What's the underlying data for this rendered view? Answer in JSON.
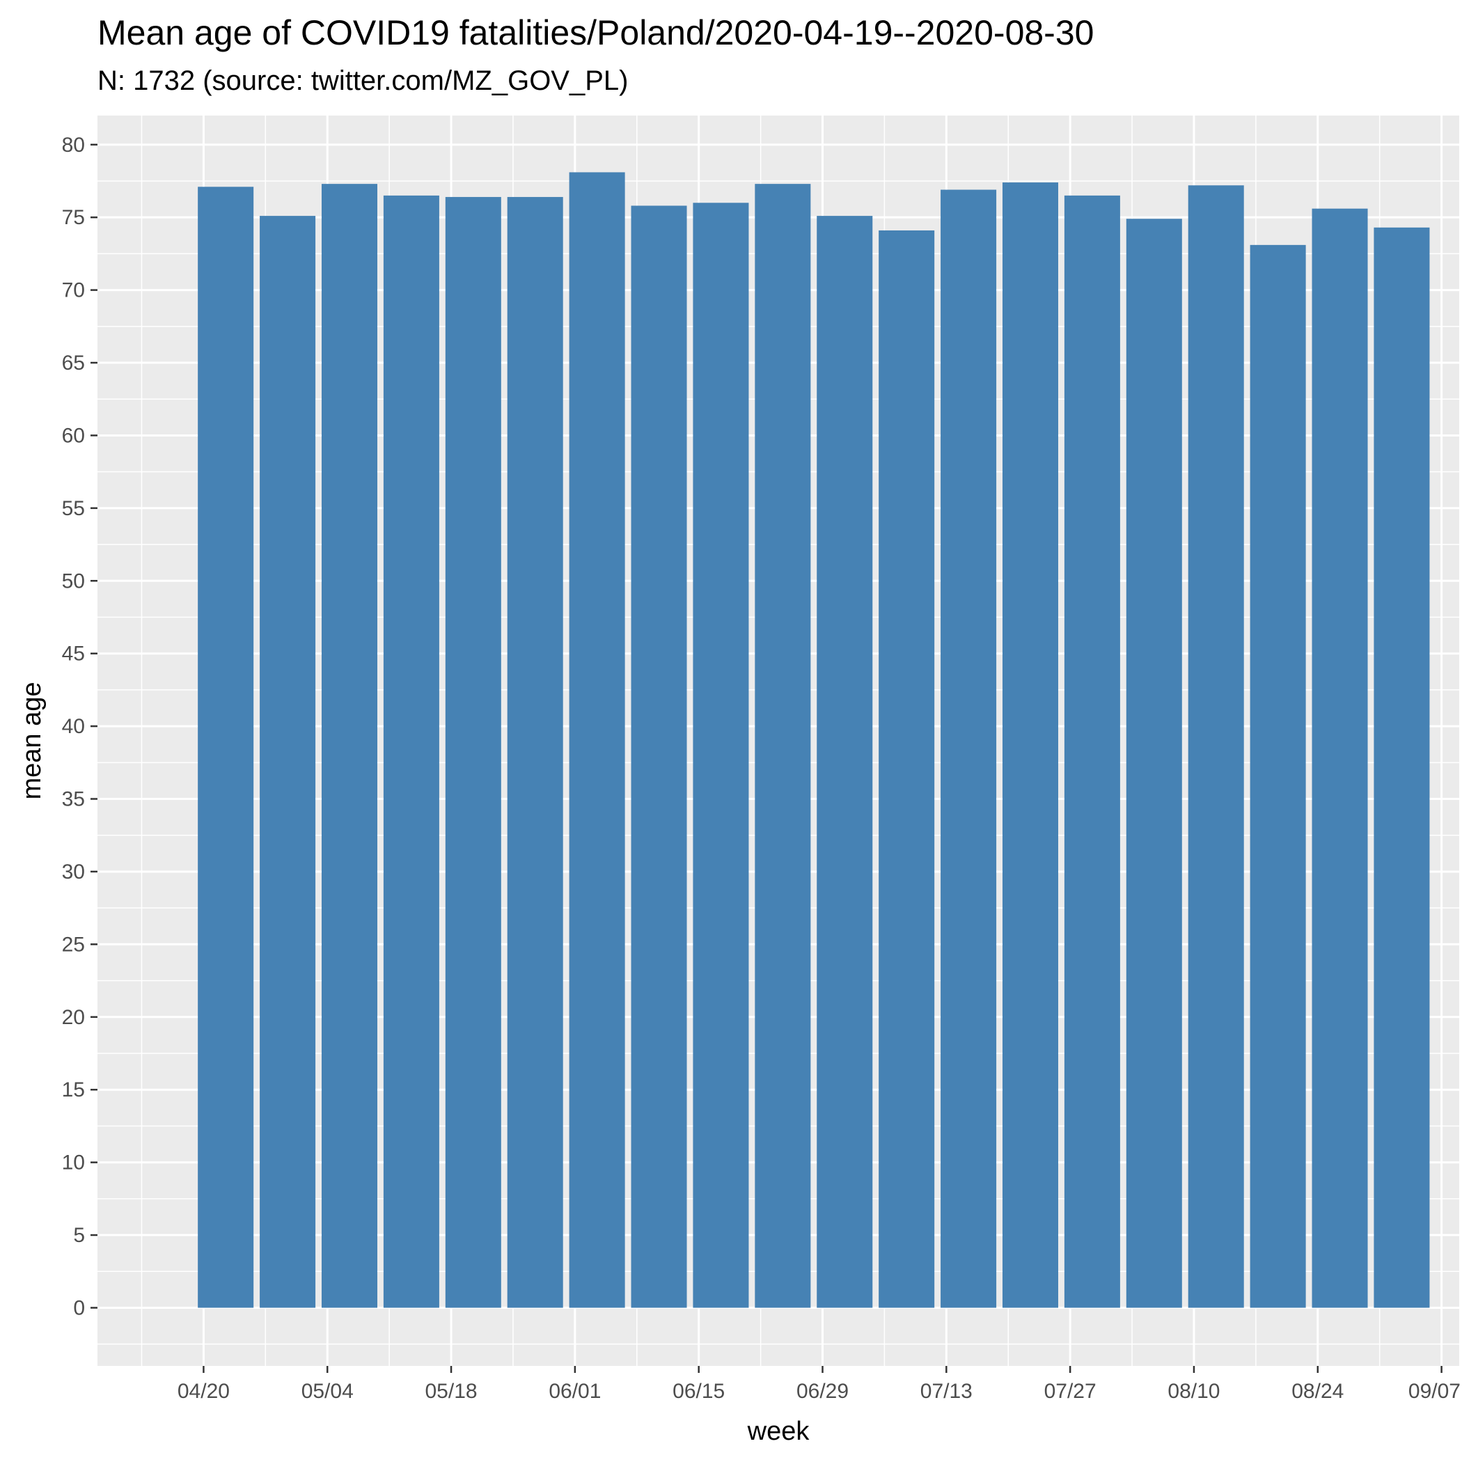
{
  "colors": {
    "panel_background": "#ebebeb",
    "gridline": "#ffffff",
    "bar_fill": "#4682b4"
  },
  "chart_data": {
    "type": "bar",
    "title": "Mean age of COVID19 fatalities/Poland/2020-04-19--2020-08-30",
    "subtitle": "N: 1732 (source: twitter.com/MZ_GOV_PL)",
    "xlabel": "week",
    "ylabel": "mean age",
    "x_axis_type": "date",
    "x_tick_labels": [
      "04/20",
      "05/04",
      "05/18",
      "06/01",
      "06/15",
      "06/29",
      "07/13",
      "07/27",
      "08/10",
      "08/24",
      "09/07"
    ],
    "x_tick_dates": [
      "2020-04-20",
      "2020-05-04",
      "2020-05-18",
      "2020-06-01",
      "2020-06-15",
      "2020-06-29",
      "2020-07-13",
      "2020-07-27",
      "2020-08-10",
      "2020-08-24",
      "2020-09-07"
    ],
    "xlim": [
      "2020-04-08",
      "2020-09-09"
    ],
    "ylim": [
      -4,
      82
    ],
    "y_ticks": [
      0,
      5,
      10,
      15,
      20,
      25,
      30,
      35,
      40,
      45,
      50,
      55,
      60,
      65,
      70,
      75,
      80
    ],
    "grid": true,
    "bar_color": "#4682b4",
    "categories": [
      "2020-04-19",
      "2020-04-26",
      "2020-05-03",
      "2020-05-10",
      "2020-05-17",
      "2020-05-24",
      "2020-05-31",
      "2020-06-07",
      "2020-06-14",
      "2020-06-21",
      "2020-06-28",
      "2020-07-05",
      "2020-07-12",
      "2020-07-19",
      "2020-07-26",
      "2020-08-02",
      "2020-08-09",
      "2020-08-16",
      "2020-08-23",
      "2020-08-30"
    ],
    "values": [
      77.1,
      75.1,
      77.3,
      76.5,
      76.4,
      76.4,
      78.1,
      75.8,
      76.0,
      77.3,
      75.1,
      74.1,
      76.9,
      77.4,
      76.5,
      74.9,
      77.2,
      73.1,
      75.6,
      74.3
    ]
  }
}
